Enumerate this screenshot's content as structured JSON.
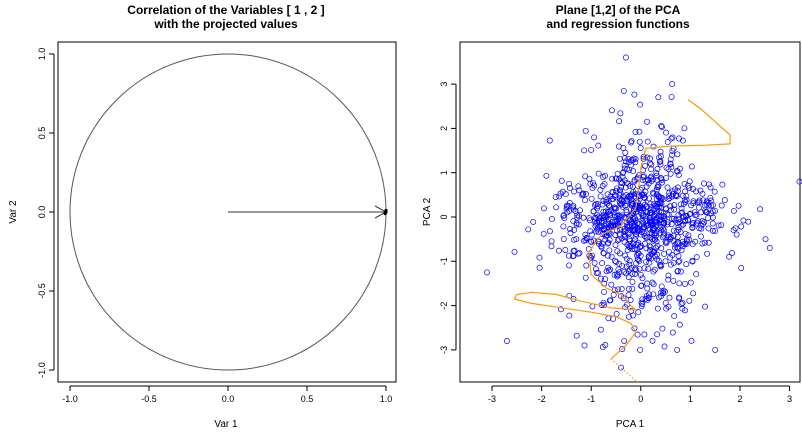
{
  "chart_data": [
    {
      "type": "line",
      "title_lines": [
        "Correlation of the Variables [ 1 , 2 ]",
        "with the projected values"
      ],
      "xlabel": "Var 1",
      "ylabel": "Var 2",
      "xlim": [
        -1.0,
        1.0
      ],
      "ylim": [
        -1.0,
        1.0
      ],
      "xticks": [
        "-1.0",
        "-0.5",
        "0.0",
        "0.5",
        "1.0"
      ],
      "yticks": [
        "-1.0",
        "-0.5",
        "0.0",
        "0.5",
        "1.0"
      ],
      "circle": {
        "center": [
          0,
          0
        ],
        "radius": 1,
        "color": "#555555"
      },
      "arrow": {
        "from": [
          0,
          0
        ],
        "to": [
          1.0,
          0.0
        ],
        "color": "#333333"
      },
      "endpoint_points": [
        [
          0.995,
          -0.01
        ],
        [
          1.0,
          0.0
        ],
        [
          1.0,
          0.01
        ]
      ]
    },
    {
      "type": "scatter",
      "title_lines": [
        "Plane [1,2] of the PCA",
        "and regression functions"
      ],
      "xlabel": "PCA 1",
      "ylabel": "PCA 2",
      "xlim": [
        -3.2,
        3.2
      ],
      "ylim": [
        -3.7,
        3.7
      ],
      "xticks": [
        "-3",
        "-2",
        "-1",
        "0",
        "1",
        "2",
        "3"
      ],
      "yticks": [
        "-3",
        "-2",
        "-1",
        "0",
        "1",
        "2",
        "3"
      ],
      "point_color": "#0000ff",
      "n_points": 1000,
      "outliers": [
        [
          -0.3,
          3.6
        ],
        [
          3.2,
          0.8
        ],
        [
          -3.1,
          -1.25
        ],
        [
          -2.7,
          -2.8
        ],
        [
          -0.4,
          -3.4
        ],
        [
          1.5,
          -3.0
        ],
        [
          2.6,
          -0.7
        ]
      ],
      "curve_color": "#ff9900",
      "curve_solid": [
        [
          0.95,
          2.65
        ],
        [
          1.2,
          2.45
        ],
        [
          1.5,
          2.15
        ],
        [
          1.8,
          1.85
        ],
        [
          1.8,
          1.65
        ],
        [
          1.3,
          1.62
        ],
        [
          0.6,
          1.6
        ],
        [
          0.1,
          1.55
        ],
        [
          0.0,
          1.1
        ],
        [
          -0.05,
          0.6
        ],
        [
          -0.1,
          0.2
        ],
        [
          -0.4,
          -0.2
        ],
        [
          -0.8,
          -0.4
        ],
        [
          -1.05,
          -0.8
        ],
        [
          -1.0,
          -1.3
        ],
        [
          -0.7,
          -1.6
        ],
        [
          -0.4,
          -1.75
        ],
        [
          -0.2,
          -2.0
        ],
        [
          -0.1,
          -2.1
        ],
        [
          -0.6,
          -2.05
        ],
        [
          -1.2,
          -1.9
        ],
        [
          -1.7,
          -1.75
        ],
        [
          -2.2,
          -1.7
        ],
        [
          -2.5,
          -1.75
        ],
        [
          -2.55,
          -1.85
        ],
        [
          -2.2,
          -1.95
        ],
        [
          -1.6,
          -2.05
        ],
        [
          -1.0,
          -2.15
        ],
        [
          -0.5,
          -2.25
        ],
        [
          -0.2,
          -2.4
        ],
        [
          -0.1,
          -2.6
        ],
        [
          -0.3,
          -2.9
        ],
        [
          -0.6,
          -3.2
        ]
      ],
      "curve_dotted": [
        [
          -0.6,
          -3.2
        ],
        [
          -0.4,
          -3.4
        ],
        [
          -0.2,
          -3.6
        ],
        [
          -0.05,
          -3.75
        ]
      ]
    }
  ]
}
